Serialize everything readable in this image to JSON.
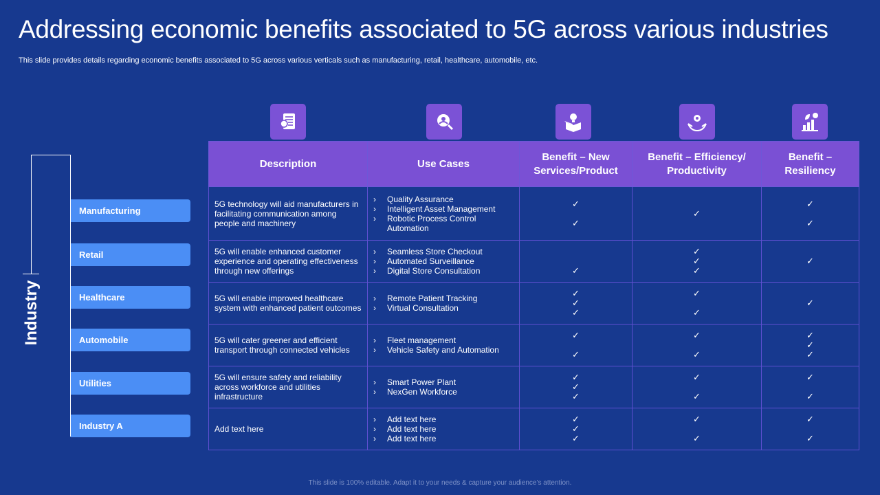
{
  "slide": {
    "title": "Addressing economic benefits associated to 5G across various industries",
    "subtitle": "This slide provides details regarding economic benefits associated to 5G across various verticals such as manufacturing, retail, healthcare, automobile, etc.",
    "footer": "This slide is 100% editable. Adapt it to your needs & capture your audience’s attention.",
    "industry_axis_label": "Industry"
  },
  "header_icons": [
    "document-chart-icon",
    "magnifier-person-icon",
    "box-lightbulb-icon",
    "hand-gear-icon",
    "growth-plant-icon"
  ],
  "columns": {
    "description": "Description",
    "use_cases": "Use Cases",
    "benefit_new": "Benefit – New Services/Product",
    "benefit_efficiency": "Benefit – Efficiency/ Productivity",
    "benefit_resiliency": "Benefit – Resiliency"
  },
  "rows": [
    {
      "industry": "Manufacturing",
      "description": "5G technology will aid manufacturers in facilitating communication among people and machinery",
      "use_cases": [
        "Quality Assurance",
        "Intelligent Asset Management",
        "Robotic Process Control Automation"
      ],
      "new": [
        "✓",
        "",
        "✓"
      ],
      "efficiency": [
        "",
        "✓",
        ""
      ],
      "resiliency": [
        "✓",
        "",
        "✓"
      ]
    },
    {
      "industry": "Retail",
      "description": "5G will enable enhanced customer experience and operating effectiveness through new offerings",
      "use_cases": [
        "Seamless Store Checkout",
        "Automated Surveillance",
        "Digital Store Consultation"
      ],
      "new": [
        "",
        "",
        "✓"
      ],
      "efficiency": [
        "✓",
        "✓",
        "✓"
      ],
      "resiliency": [
        "",
        "✓",
        ""
      ]
    },
    {
      "industry": "Healthcare",
      "description": "5G will enable improved healthcare system with enhanced patient outcomes",
      "use_cases": [
        "Remote Patient Tracking",
        "Virtual Consultation"
      ],
      "new": [
        "✓",
        "✓",
        "✓"
      ],
      "efficiency": [
        "✓",
        "",
        "✓"
      ],
      "resiliency": [
        "",
        "✓",
        ""
      ]
    },
    {
      "industry": "Automobile",
      "description": "5G will cater greener and efficient transport through connected vehicles",
      "use_cases": [
        "Fleet management",
        "Vehicle Safety and Automation"
      ],
      "new": [
        "✓",
        "",
        "✓"
      ],
      "efficiency": [
        "✓",
        "",
        "✓"
      ],
      "resiliency": [
        "✓",
        "✓",
        "✓"
      ]
    },
    {
      "industry": "Utilities",
      "description": "5G will ensure safety and reliability across workforce and utilities infrastructure",
      "use_cases": [
        "Smart Power Plant",
        "NexGen Workforce"
      ],
      "new": [
        "✓",
        "✓",
        "✓"
      ],
      "efficiency": [
        "✓",
        "",
        "✓"
      ],
      "resiliency": [
        "✓",
        "",
        "✓"
      ]
    },
    {
      "industry": "Industry A",
      "description": "Add text here",
      "use_cases": [
        "Add text here",
        "Add text here",
        "Add text here"
      ],
      "new": [
        "✓",
        "✓",
        "✓"
      ],
      "efficiency": [
        "✓",
        "",
        "✓"
      ],
      "resiliency": [
        "✓",
        "",
        "✓"
      ]
    }
  ]
}
